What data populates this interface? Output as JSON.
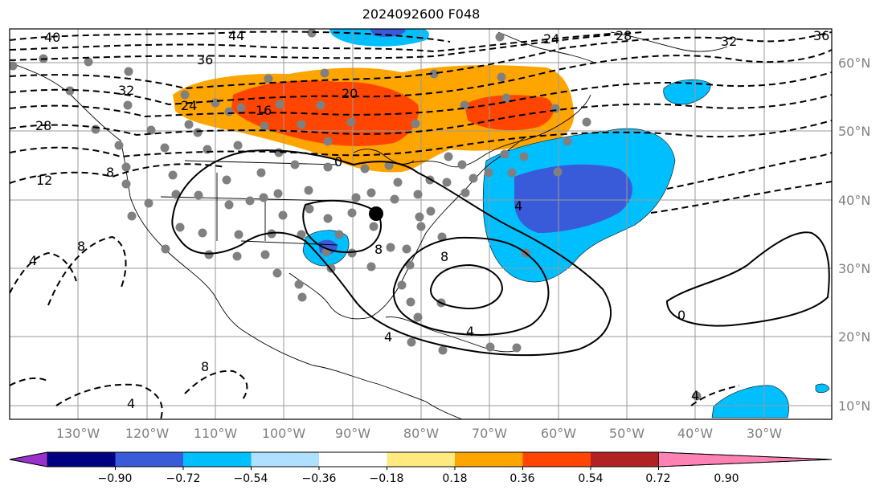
{
  "title": "2024092600 F048",
  "lon_labels": [
    "130°W",
    "120°W",
    "110°W",
    "100°W",
    "90°W",
    "80°W",
    "70°W",
    "60°W",
    "50°W",
    "40°W",
    "30°W"
  ],
  "lat_labels": [
    "60°N",
    "50°N",
    "40°N",
    "30°N",
    "20°N",
    "10°N"
  ],
  "colorbar": {
    "ticks": [
      "−0.90",
      "−0.72",
      "−0.54",
      "−0.36",
      "−0.18",
      "0.18",
      "0.36",
      "0.54",
      "0.72",
      "0.90"
    ],
    "colors": [
      "#9932CC",
      "#000080",
      "#3A5BD9",
      "#00BFFF",
      "#ADE1FF",
      "#FFFFFF",
      "#FFEA80",
      "#FFA500",
      "#FF4500",
      "#B22222",
      "#FF82B4"
    ]
  },
  "contour_labels": [
    "40",
    "44",
    "36",
    "32",
    "28",
    "24",
    "20",
    "16",
    "12",
    "8",
    "4",
    "0",
    "24",
    "28",
    "32",
    "36",
    "8",
    "4",
    "8",
    "4",
    "8",
    "4",
    "0",
    "4",
    "8",
    "4"
  ],
  "colors": {
    "warm_orange": "#FFA500",
    "warm_red": "#FF4500",
    "cool_light": "#00BFFF",
    "cool_dark": "#3A5BD9",
    "grid": "#9a9a9a",
    "station": "#808080"
  }
}
